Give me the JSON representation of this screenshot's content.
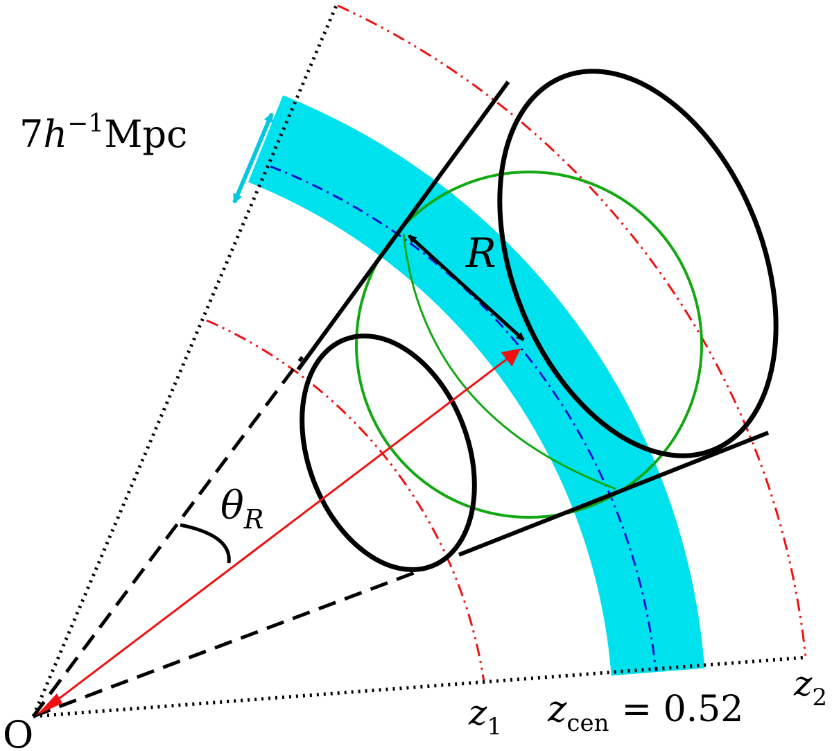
{
  "labels": {
    "origin": "O",
    "scale_value": "7",
    "scale_h": "h",
    "scale_exp": "−1",
    "scale_unit": "Mpc",
    "radius": "R",
    "theta": "θ",
    "theta_sub": "R",
    "z1": "z",
    "z1_sub": "1",
    "z2": "z",
    "z2_sub": "2",
    "zcen": "z",
    "zcen_sub": "cen",
    "zcen_eq": "= 0.52"
  },
  "colors": {
    "shell_band": "#00e1ee",
    "center_line": "#1010d0",
    "redshift_limits": "#ee1111",
    "sphere": "#13a813",
    "vector": "#ee1111",
    "cone": "#000000",
    "scale_arrow": "#00c8e0"
  }
}
